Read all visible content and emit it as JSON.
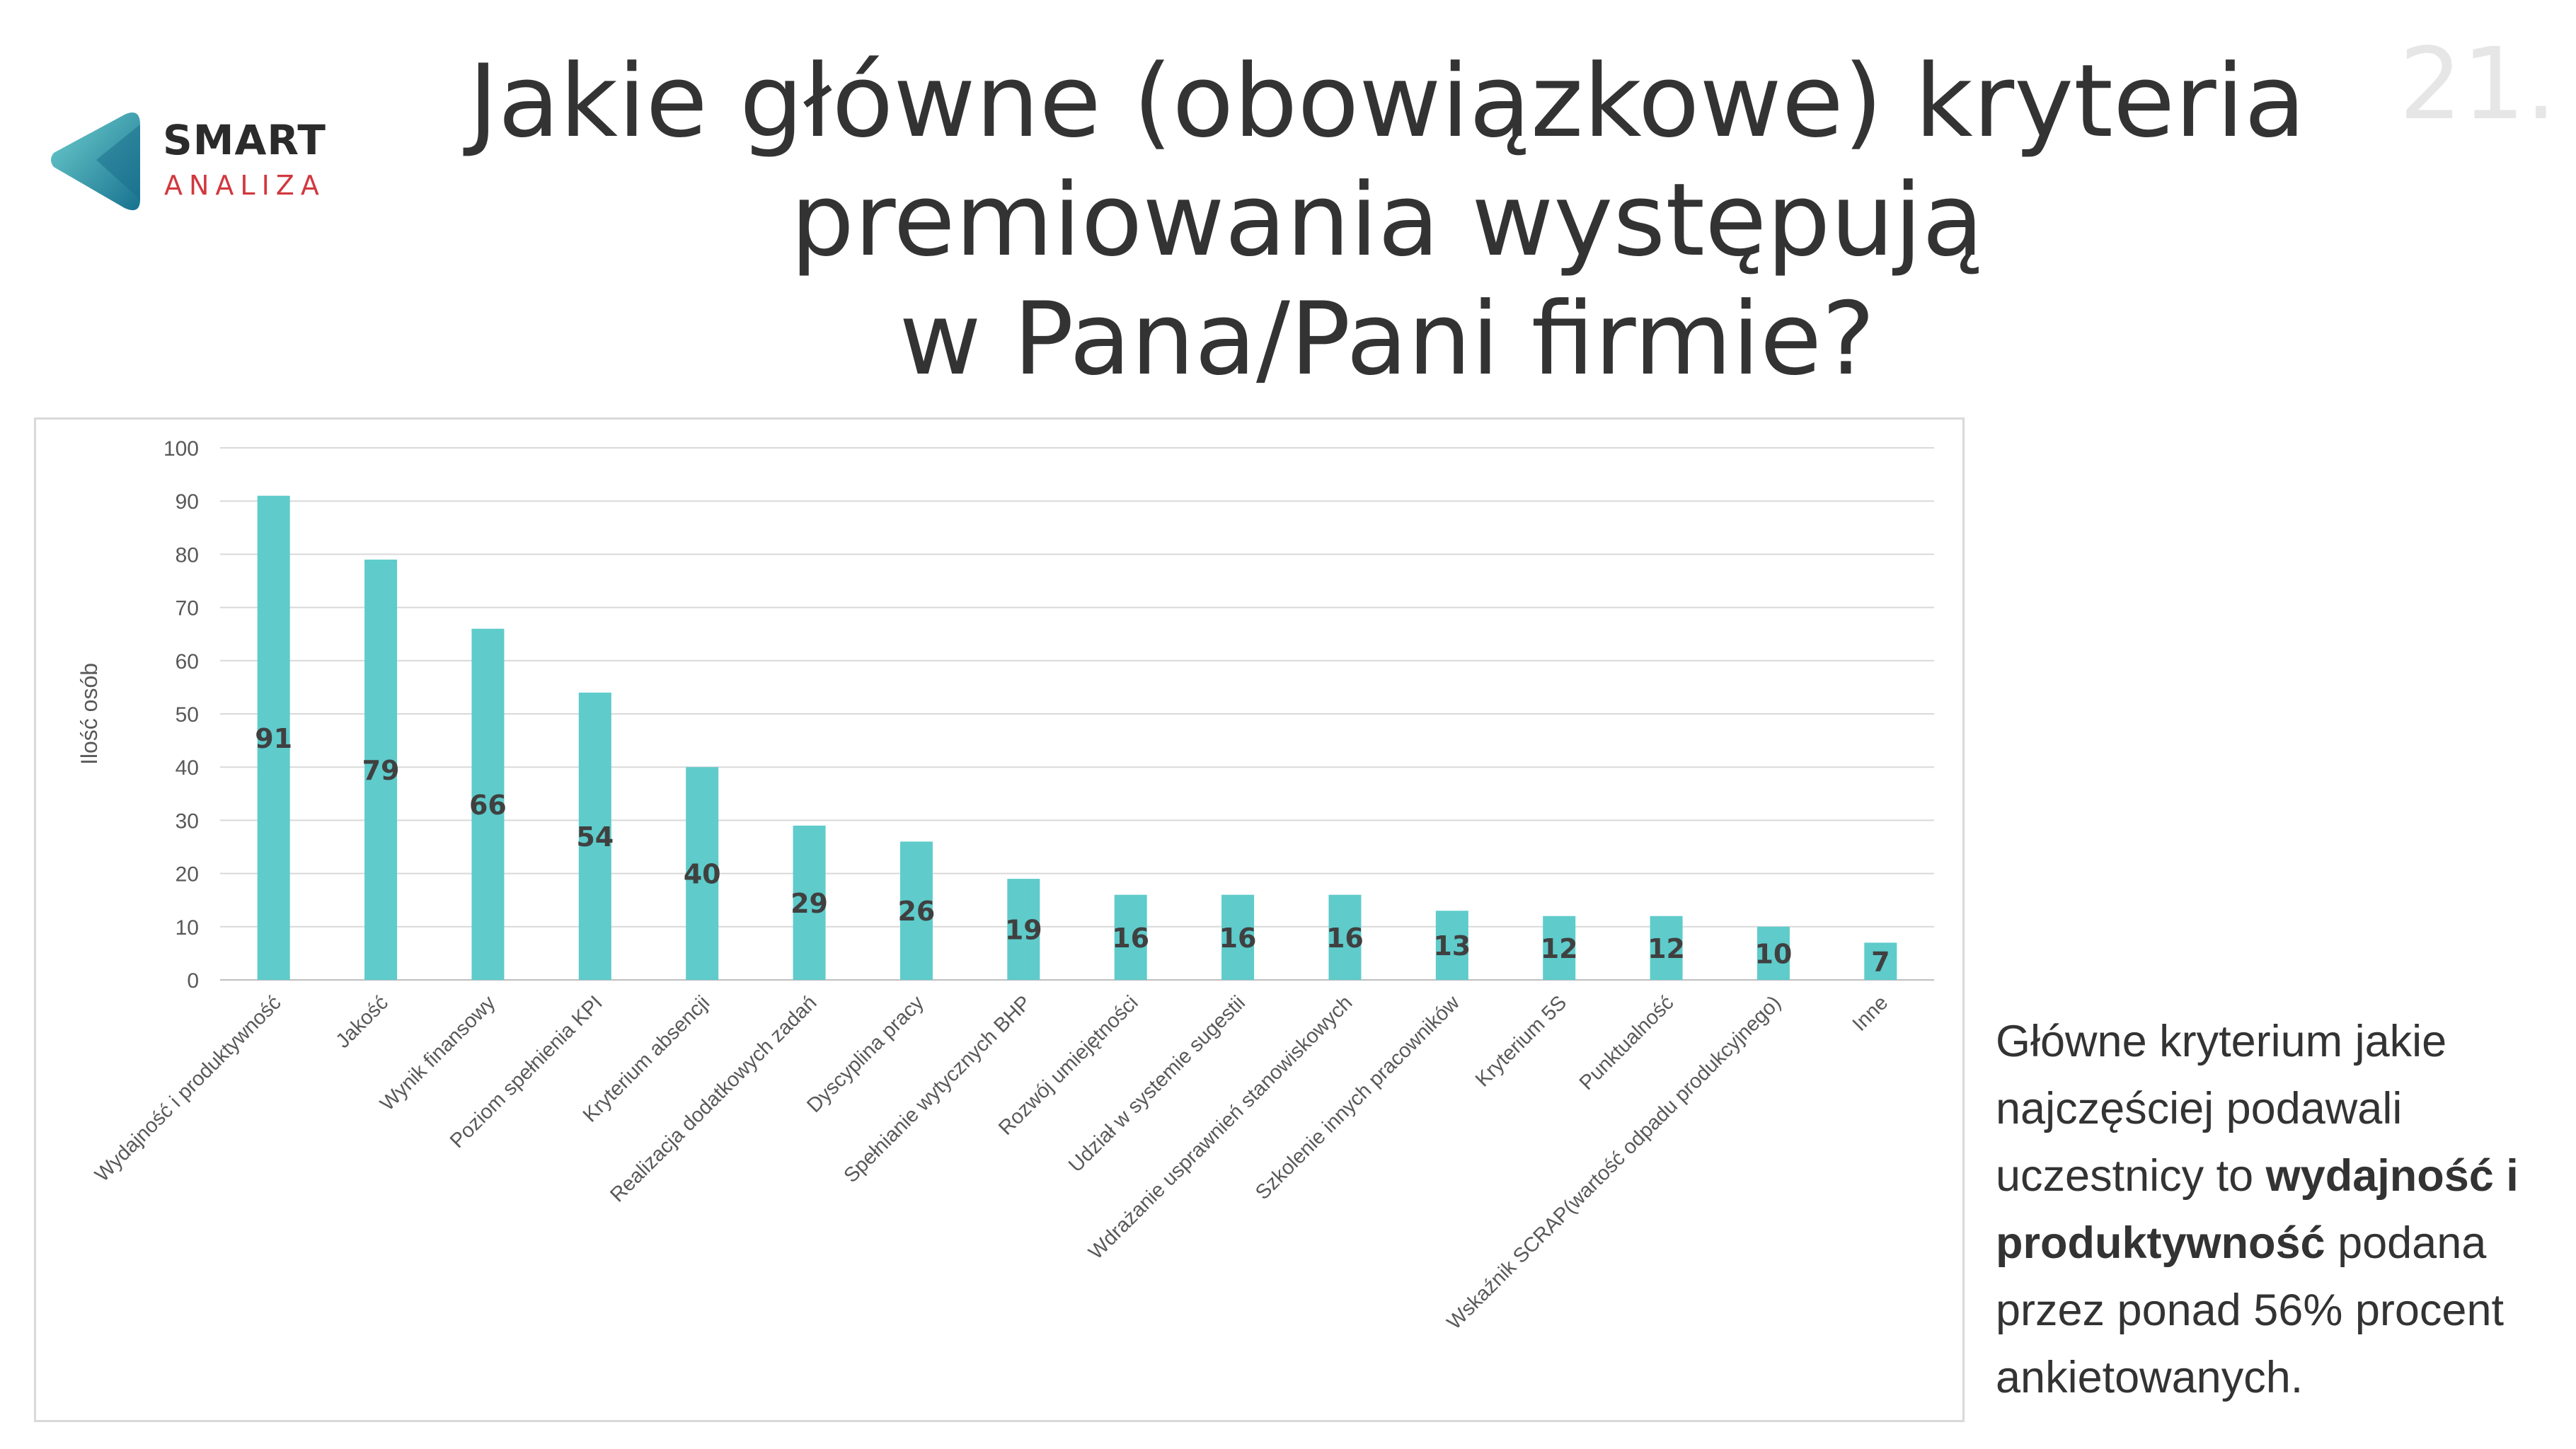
{
  "header": {
    "title_lines": [
      "Jakie główne (obowiązkowe) kryteria",
      "premiowania występują",
      "w Pana/Pani firmie?"
    ],
    "page_number": "21."
  },
  "logo": {
    "top": "SMART",
    "bottom": "ANALIZA",
    "colors": {
      "mark_light": "#5fc7c9",
      "mark_dark": "#1e7f9a",
      "accent": "#d1383f"
    }
  },
  "chart_data": {
    "type": "bar",
    "title": "",
    "xlabel": "",
    "ylabel": "Ilość osób",
    "ylim": [
      0,
      100
    ],
    "yticks": [
      0,
      10,
      20,
      30,
      40,
      50,
      60,
      70,
      80,
      90,
      100
    ],
    "grid": true,
    "bar_color": "#5fcbcb",
    "categories": [
      "Wydajność i produktywność",
      "Jakość",
      "Wynik finansowy",
      "Poziom spełnienia KPI",
      "Kryterium absencji",
      "Realizacja dodatkowych zadań",
      "Dyscyplina pracy",
      "Spełnianie wytycznych BHP",
      "Rozwój umiejętności",
      "Udział w systemie sugestii",
      "Wdrażanie usprawnień stanowiskowych",
      "Szkolenie innych pracowników",
      "Kryterium 5S",
      "Punktualność",
      "Wskaźnik SCRAP(wartość odpadu produkcyjnego)",
      "Inne"
    ],
    "values": [
      91,
      79,
      66,
      54,
      40,
      29,
      26,
      19,
      16,
      16,
      16,
      13,
      12,
      12,
      10,
      7
    ]
  },
  "caption": {
    "part1": "Główne kryterium jakie najczęściej podawali uczestnicy to ",
    "bold": "wydajność i produktywność",
    "part2": " podana przez ponad 56% procent ankietowanych."
  }
}
